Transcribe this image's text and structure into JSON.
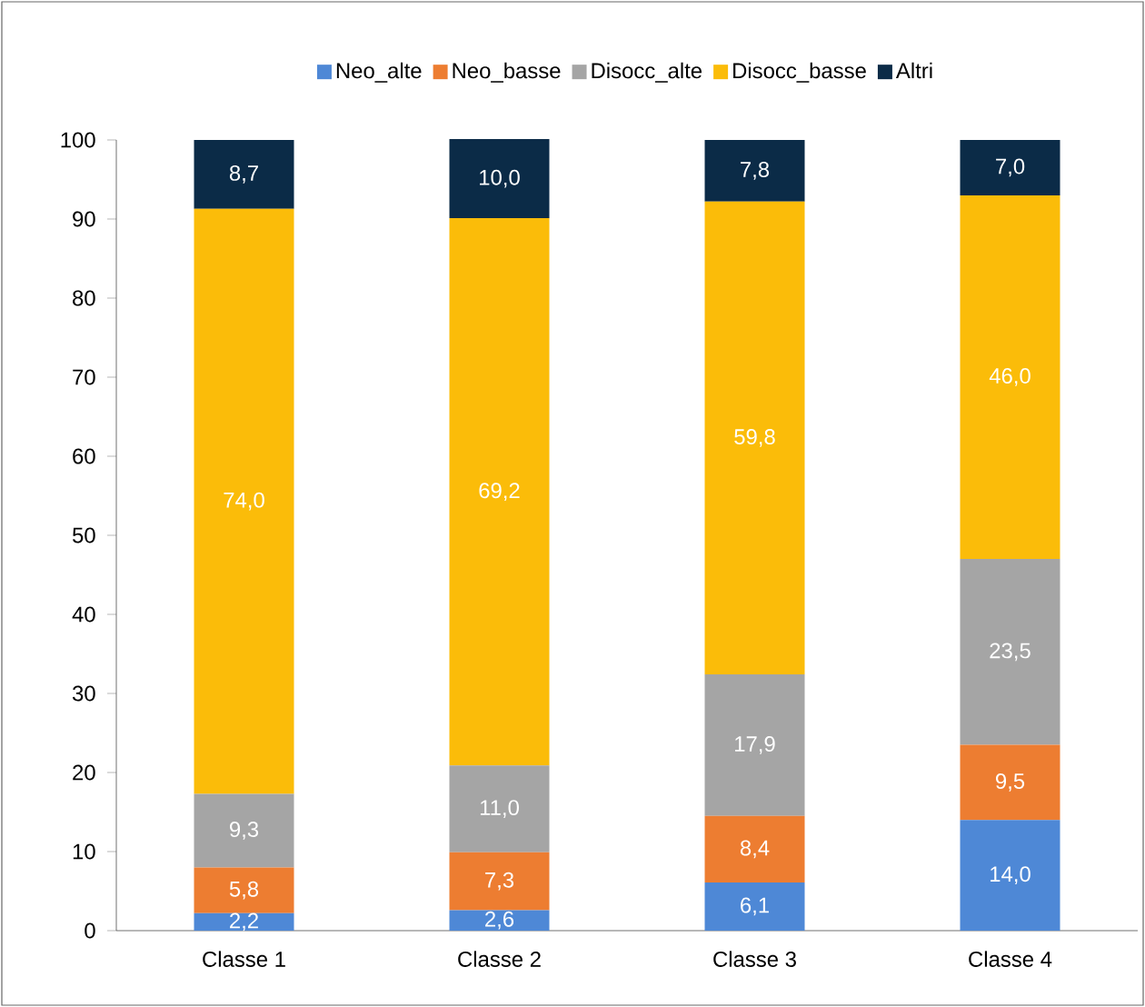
{
  "chart_data": {
    "type": "bar",
    "stacked": true,
    "categories": [
      "Classe 1",
      "Classe 2",
      "Classe 3",
      "Classe 4"
    ],
    "series": [
      {
        "name": "Neo_alte",
        "color": "#4e88d6",
        "values": [
          2.2,
          2.6,
          6.1,
          14.0
        ],
        "value_labels": [
          "2,2",
          "2,6",
          "6,1",
          "14,0"
        ]
      },
      {
        "name": "Neo_basse",
        "color": "#ed7d31",
        "values": [
          5.8,
          7.3,
          8.4,
          9.5
        ],
        "value_labels": [
          "5,8",
          "7,3",
          "8,4",
          "9,5"
        ]
      },
      {
        "name": "Disocc_alte",
        "color": "#a5a5a5",
        "values": [
          9.3,
          11.0,
          17.9,
          23.5
        ],
        "value_labels": [
          "9,3",
          "11,0",
          "17,9",
          "23,5"
        ]
      },
      {
        "name": "Disocc_basse",
        "color": "#fbbc09",
        "values": [
          74.0,
          69.2,
          59.8,
          46.0
        ],
        "value_labels": [
          "74,0",
          "69,2",
          "59,8",
          "46,0"
        ]
      },
      {
        "name": "Altri",
        "color": "#0b2b47",
        "values": [
          8.7,
          10.0,
          7.8,
          7.0
        ],
        "value_labels": [
          "8,7",
          "10,0",
          "7,8",
          "7,0"
        ]
      }
    ],
    "ylim": [
      0,
      100
    ],
    "yticks": [
      0,
      10,
      20,
      30,
      40,
      50,
      60,
      70,
      80,
      90,
      100
    ],
    "legend": "top",
    "grid": false
  }
}
